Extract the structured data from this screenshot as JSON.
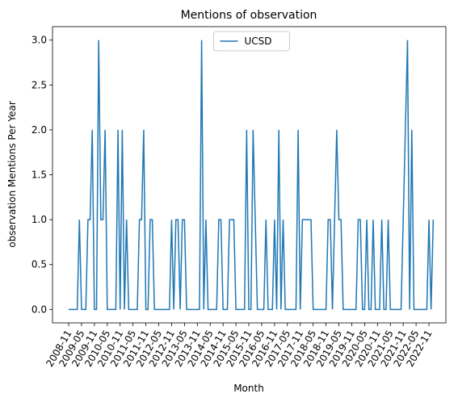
{
  "chart_data": {
    "type": "line",
    "title": "Mentions of observation",
    "xlabel": "Month",
    "ylabel": "observation Mentions Per Year",
    "categories": [
      "2008-11",
      null,
      null,
      null,
      null,
      null,
      "2009-05",
      null,
      null,
      null,
      null,
      null,
      "2009-11",
      null,
      null,
      null,
      null,
      null,
      "2010-05",
      null,
      null,
      null,
      null,
      null,
      "2010-11",
      null,
      null,
      null,
      null,
      null,
      "2011-05",
      null,
      null,
      null,
      null,
      null,
      "2011-11",
      null,
      null,
      null,
      null,
      null,
      "2012-05",
      null,
      null,
      null,
      null,
      null,
      "2012-11",
      null,
      null,
      null,
      null,
      null,
      "2013-05",
      null,
      null,
      null,
      null,
      null,
      "2013-11",
      null,
      null,
      null,
      null,
      null,
      "2014-05",
      null,
      null,
      null,
      null,
      null,
      "2014-11",
      null,
      null,
      null,
      null,
      null,
      "2015-05",
      null,
      null,
      null,
      null,
      null,
      "2015-11",
      null,
      null,
      null,
      null,
      null,
      "2016-05",
      null,
      null,
      null,
      null,
      null,
      "2016-11",
      null,
      null,
      null,
      null,
      null,
      "2017-05",
      null,
      null,
      null,
      null,
      null,
      "2017-11",
      null,
      null,
      null,
      null,
      null,
      "2018-05",
      null,
      null,
      null,
      null,
      null,
      "2018-11",
      null,
      null,
      null,
      null,
      null,
      "2019-05",
      null,
      null,
      null,
      null,
      null,
      "2019-11",
      null,
      null,
      null,
      null,
      null,
      "2020-05",
      null,
      null,
      null,
      null,
      null,
      "2020-11",
      null,
      null,
      null,
      null,
      null,
      "2021-05",
      null,
      null,
      null,
      null,
      null,
      "2021-11",
      null,
      null,
      null,
      null,
      null,
      "2022-05",
      null,
      null,
      null,
      null,
      null,
      "2022-11",
      null,
      null
    ],
    "series": [
      {
        "name": "UCSD",
        "color": "#1f77b4",
        "values": [
          0,
          0,
          0,
          0,
          0,
          1,
          0,
          0,
          0,
          1,
          1,
          2,
          0,
          0,
          3,
          1,
          1,
          2,
          0,
          0,
          0,
          0,
          0,
          2,
          0,
          2,
          0,
          1,
          0,
          0,
          0,
          0,
          0,
          1,
          1,
          2,
          0,
          0,
          1,
          1,
          0,
          0,
          0,
          0,
          0,
          0,
          0,
          0,
          1,
          0,
          1,
          1,
          0,
          1,
          1,
          0,
          0,
          0,
          0,
          0,
          0,
          0,
          3,
          0,
          1,
          0,
          0,
          0,
          0,
          0,
          1,
          1,
          0,
          0,
          0,
          1,
          1,
          1,
          0,
          0,
          0,
          0,
          0,
          2,
          0,
          0,
          2,
          1,
          0,
          0,
          0,
          0,
          1,
          0,
          0,
          0,
          1,
          0,
          2,
          0,
          1,
          0,
          0,
          0,
          0,
          0,
          0,
          2,
          0,
          1,
          1,
          1,
          1,
          1,
          0,
          0,
          0,
          0,
          0,
          0,
          0,
          1,
          1,
          0,
          1,
          2,
          1,
          1,
          0,
          0,
          0,
          0,
          0,
          0,
          0,
          1,
          1,
          0,
          0,
          1,
          0,
          0,
          1,
          0,
          0,
          0,
          1,
          0,
          0,
          1,
          0,
          0,
          0,
          0,
          0,
          0,
          1,
          2,
          3,
          0,
          2,
          0,
          0,
          0,
          0,
          0,
          0,
          0,
          1,
          0,
          1
        ]
      }
    ],
    "ylim": [
      -0.15,
      3.15
    ],
    "yticks": [
      {
        "value": 0,
        "label": "0.0"
      },
      {
        "value": 0.5,
        "label": "0.5"
      },
      {
        "value": 1,
        "label": "1.0"
      },
      {
        "value": 1.5,
        "label": "1.5"
      },
      {
        "value": 2,
        "label": "2.0"
      },
      {
        "value": 2.5,
        "label": "2.5"
      },
      {
        "value": 3,
        "label": "3.0"
      }
    ],
    "legend": "upper center"
  }
}
